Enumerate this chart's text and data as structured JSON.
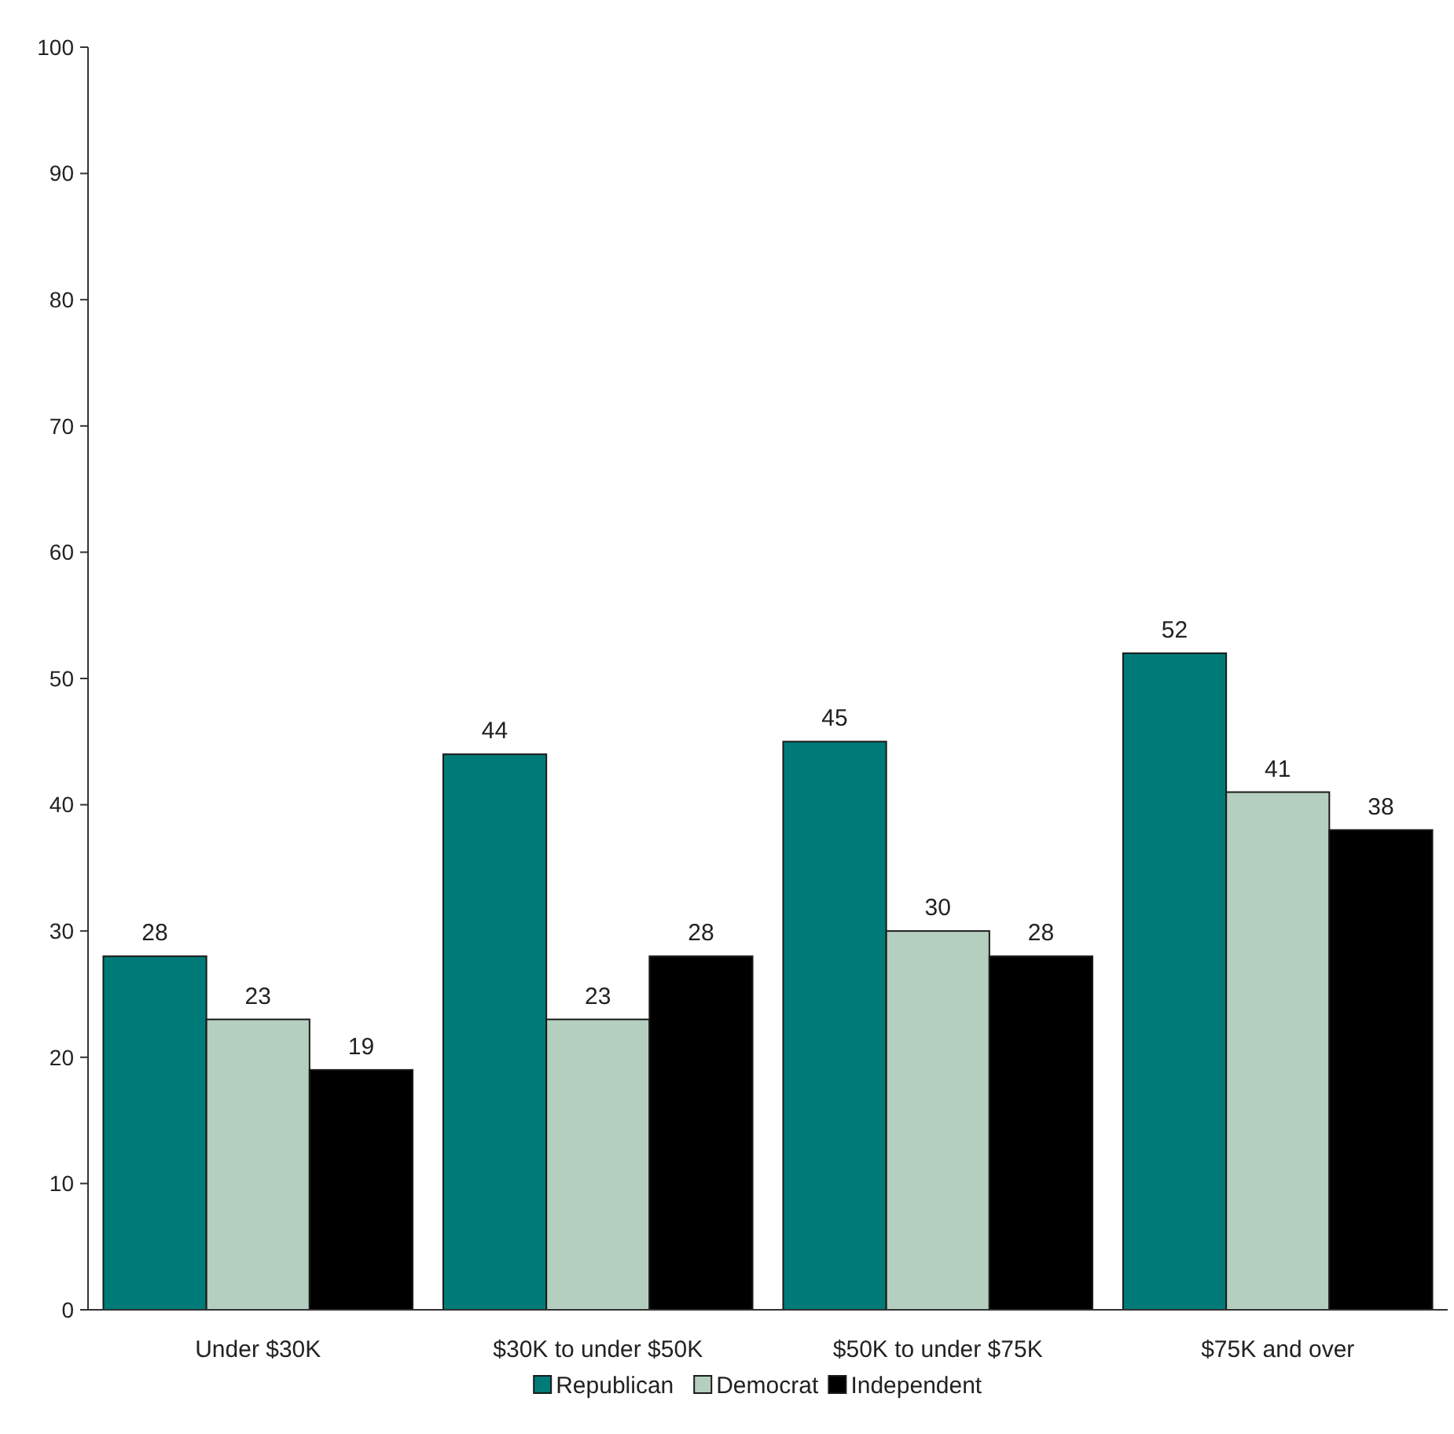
{
  "chart_data": {
    "type": "bar",
    "categories": [
      "Under $30K",
      "$30K to under $50K",
      "$50K to under $75K",
      "$75K and over"
    ],
    "series": [
      {
        "name": "Republican",
        "color": "#007b78",
        "values": [
          28,
          44,
          45,
          52
        ]
      },
      {
        "name": "Democrat",
        "color": "#b4cfc0",
        "values": [
          23,
          23,
          30,
          41
        ]
      },
      {
        "name": "Independent",
        "color": "#000000",
        "values": [
          19,
          28,
          28,
          38
        ]
      }
    ],
    "ylim": [
      0,
      100
    ],
    "yticks": [
      0,
      10,
      20,
      30,
      40,
      50,
      60,
      70,
      80,
      90,
      100
    ],
    "data_labels": true,
    "legend": "bottom",
    "grid": false
  }
}
